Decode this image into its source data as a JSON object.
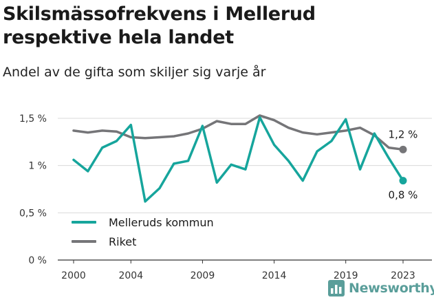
{
  "title": "Skilsmässofrekvens i Mellerud respektive hela landet",
  "subtitle": "Andel av de gifta som skiljer sig varje år",
  "brand": {
    "name": "Newsworthy",
    "icon": "bar-chart-logo-icon",
    "color": "#5a9e9a"
  },
  "chart_data": {
    "type": "line",
    "x": [
      2000,
      2001,
      2002,
      2003,
      2004,
      2005,
      2006,
      2007,
      2008,
      2009,
      2010,
      2011,
      2012,
      2013,
      2014,
      2015,
      2016,
      2017,
      2018,
      2019,
      2020,
      2021,
      2022,
      2023
    ],
    "xticks": [
      2000,
      2004,
      2009,
      2014,
      2019,
      2023
    ],
    "xtick_labels": [
      "2000",
      "2004",
      "2009",
      "2014",
      "2019",
      "2023"
    ],
    "ylim": [
      0,
      1.5
    ],
    "yticks": [
      0,
      0.5,
      1,
      1.5
    ],
    "ytick_labels": [
      "0 %",
      "0,5 %",
      "1 %",
      "1,5 %"
    ],
    "grid": true,
    "legend_position": "bottom-left",
    "series": [
      {
        "name": "Melleruds kommun",
        "color": "#16a59c",
        "values": [
          1.06,
          0.94,
          1.19,
          1.26,
          1.43,
          0.62,
          0.76,
          1.02,
          1.05,
          1.42,
          0.82,
          1.01,
          0.96,
          1.51,
          1.22,
          1.05,
          0.84,
          1.15,
          1.26,
          1.49,
          0.96,
          1.34,
          1.08,
          0.84
        ],
        "end_label": "0,8 %"
      },
      {
        "name": "Riket",
        "color": "#757578",
        "values": [
          1.37,
          1.35,
          1.37,
          1.36,
          1.3,
          1.29,
          1.3,
          1.31,
          1.34,
          1.39,
          1.47,
          1.44,
          1.44,
          1.53,
          1.48,
          1.4,
          1.35,
          1.33,
          1.35,
          1.37,
          1.4,
          1.32,
          1.19,
          1.17
        ],
        "end_label": "1,2 %"
      }
    ]
  }
}
